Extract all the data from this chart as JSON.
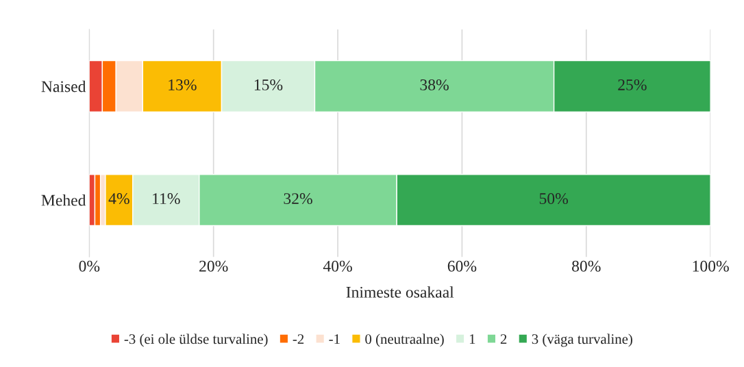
{
  "chart_data": {
    "type": "bar",
    "orientation": "horizontal",
    "stacked": true,
    "xlabel": "Inimeste osakaal",
    "categories": [
      "Naised",
      "Mehed"
    ],
    "series": [
      {
        "name": "-3 (ei ole üldse turvaline)",
        "color": "#ea4335",
        "values": [
          2.1,
          0.9
        ]
      },
      {
        "name": "-2",
        "color": "#ff6d01",
        "values": [
          2.2,
          0.9
        ]
      },
      {
        "name": "-1",
        "color": "#fce1d0",
        "values": [
          4.3,
          0.8
        ]
      },
      {
        "name": "0 (neutraalne)",
        "color": "#fbbc04",
        "values": [
          12.7,
          4.4
        ],
        "value_labels": [
          "13%",
          "4%"
        ]
      },
      {
        "name": "1",
        "color": "#d6f1dd",
        "values": [
          15,
          10.7
        ],
        "value_labels": [
          "15%",
          "11%"
        ]
      },
      {
        "name": "2",
        "color": "#7ed795",
        "values": [
          38.5,
          31.8
        ],
        "value_labels": [
          "38%",
          "32%"
        ]
      },
      {
        "name": "3 (väga turvaline)",
        "color": "#34a853",
        "values": [
          25.2,
          50.5
        ],
        "value_labels": [
          "25%",
          "50%"
        ]
      }
    ],
    "xlim": [
      0,
      100
    ],
    "xticks": [
      {
        "value": 0,
        "label": "0%"
      },
      {
        "value": 20,
        "label": "20%"
      },
      {
        "value": 40,
        "label": "40%"
      },
      {
        "value": 60,
        "label": "60%"
      },
      {
        "value": 80,
        "label": "80%"
      },
      {
        "value": 100,
        "label": "100%"
      }
    ],
    "grid": "x",
    "legend": "bottom"
  }
}
